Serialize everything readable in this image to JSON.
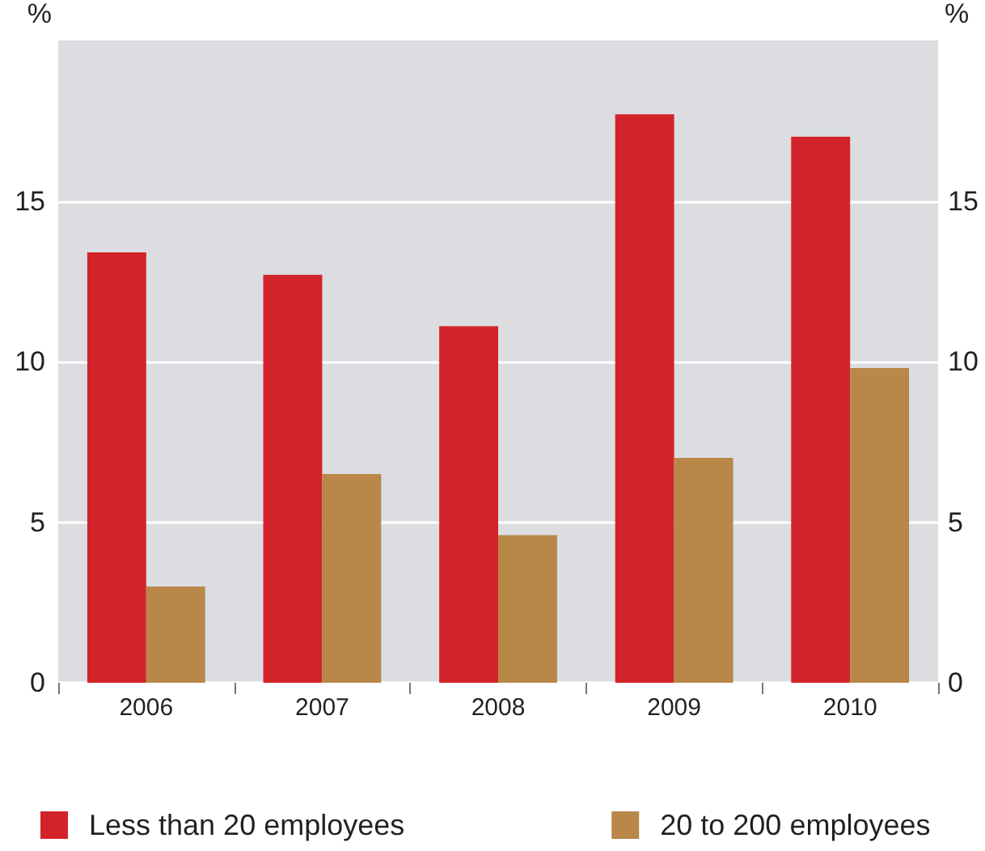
{
  "chart_data": {
    "type": "bar",
    "ylabel": "%",
    "y2label": "%",
    "categories": [
      "2006",
      "2007",
      "2008",
      "2009",
      "2010"
    ],
    "series": [
      {
        "name": "Less than 20 employees",
        "color": "#d2232a",
        "values": [
          13.4,
          12.7,
          11.1,
          17.7,
          17.0
        ]
      },
      {
        "name": "20 to 200 employees",
        "color": "#b98747",
        "values": [
          3.0,
          6.5,
          4.6,
          7.0,
          9.8
        ]
      }
    ],
    "ylim": [
      0,
      20
    ],
    "yticks": [
      0,
      5,
      10,
      15
    ],
    "y2lim": [
      0,
      20
    ],
    "y2ticks": [
      0,
      5,
      10,
      15
    ],
    "grid": "y",
    "legend": "bottom"
  }
}
